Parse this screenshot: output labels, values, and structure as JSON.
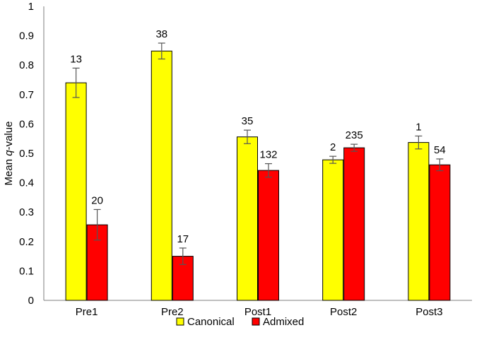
{
  "chart_data": {
    "type": "bar",
    "title": "",
    "xlabel": "",
    "ylabel_prefix": "Mean ",
    "ylabel_italic": "q",
    "ylabel_suffix": "-value",
    "ylim": [
      0,
      1
    ],
    "ytick_step": 0.1,
    "yticks": [
      "0",
      "0.1",
      "0.2",
      "0.3",
      "0.4",
      "0.5",
      "0.6",
      "0.7",
      "0.8",
      "0.9",
      "1"
    ],
    "categories": [
      "Pre1",
      "Pre2",
      "Post1",
      "Post2",
      "Post3"
    ],
    "series": [
      {
        "name": "Canonical",
        "color": "#FFFF00",
        "values": [
          0.74,
          0.848,
          0.556,
          0.478,
          0.537
        ],
        "errors": [
          0.05,
          0.027,
          0.023,
          0.012,
          0.022
        ],
        "labels": [
          "13",
          "38",
          "35",
          "2",
          "1"
        ]
      },
      {
        "name": "Admixed",
        "color": "#FF0000",
        "values": [
          0.257,
          0.15,
          0.442,
          0.519,
          0.461
        ],
        "errors": [
          0.052,
          0.028,
          0.023,
          0.012,
          0.02
        ],
        "labels": [
          "20",
          "17",
          "132",
          "235",
          "54"
        ]
      }
    ],
    "grid": false,
    "legend_position": "bottom"
  }
}
